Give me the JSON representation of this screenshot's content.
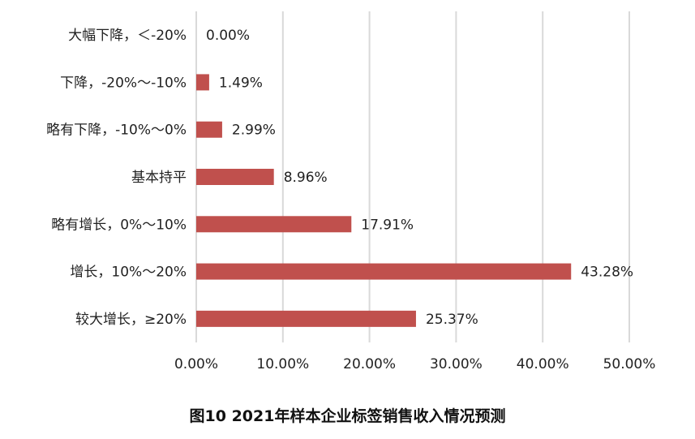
{
  "chart_data": {
    "type": "bar",
    "orientation": "horizontal",
    "title": "图10 2021年样本企业标签销售收入情况预测",
    "categories": [
      "大幅下降，＜-20%",
      "下降，-20%～-10%",
      "略有下降，-10%～0%",
      "基本持平",
      "略有增长，0%～10%",
      "增长，10%～20%",
      "较大增长，≥20%"
    ],
    "values": [
      0.0,
      1.49,
      2.99,
      8.96,
      17.91,
      43.28,
      25.37
    ],
    "data_labels": [
      "0.00%",
      "1.49%",
      "2.99%",
      "8.96%",
      "17.91%",
      "43.28%",
      "25.37%"
    ],
    "x_ticks": [
      "0.00%",
      "10.00%",
      "20.00%",
      "30.00%",
      "40.00%",
      "50.00%"
    ],
    "xlim": [
      0,
      50
    ],
    "grid": "vertical",
    "bar_color": "#c0504d",
    "grid_color": "#d9d9d9"
  }
}
